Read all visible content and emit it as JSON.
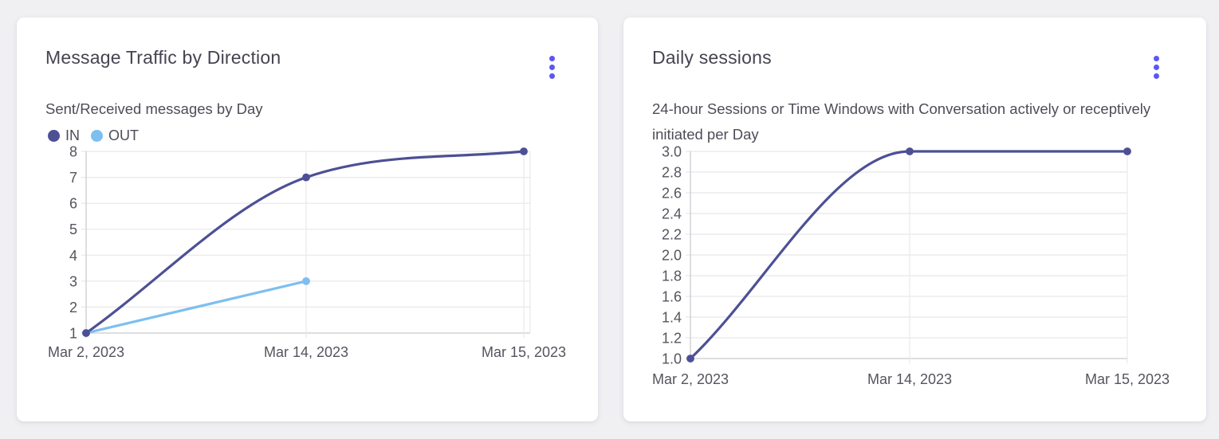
{
  "page_background": "#F0F0F3",
  "colors": {
    "accent_menu": "#5B57F2",
    "card_background": "#FFFFFF",
    "title_text": "#454451",
    "subtitle_text": "#4E4D58",
    "tick_text": "#55545E",
    "gridline": "#E8E8EB",
    "axis_line": "#C9C9CF",
    "series_in": "#4D5095",
    "series_out": "#7DBFF0"
  },
  "cards": [
    {
      "title": "Message Traffic by Direction",
      "subtitle": "Sent/Received messages by Day",
      "menu_icon": "kebab-menu-icon"
    },
    {
      "title": "Daily sessions",
      "subtitle": "24-hour Sessions or Time Windows with Conversation actively or receptively initiated per Day",
      "menu_icon": "kebab-menu-icon"
    }
  ],
  "chart_data": [
    {
      "type": "line",
      "title": "Message Traffic by Direction",
      "subtitle": "Sent/Received messages by Day",
      "categories": [
        "Mar 2, 2023",
        "Mar 14, 2023",
        "Mar 15, 2023"
      ],
      "series": [
        {
          "name": "IN",
          "color": "#4D5095",
          "values": [
            1,
            7,
            8
          ]
        },
        {
          "name": "OUT",
          "color": "#7DBFF0",
          "values": [
            1,
            3,
            null
          ]
        }
      ],
      "yticks": [
        "1",
        "2",
        "3",
        "4",
        "5",
        "6",
        "7",
        "8"
      ],
      "ylim": [
        1,
        8
      ],
      "xlabel": "",
      "ylabel": "",
      "grid": true,
      "legend_position": "top-left",
      "curve": "monotone"
    },
    {
      "type": "line",
      "title": "Daily sessions",
      "subtitle": "24-hour Sessions or Time Windows with Conversation actively or receptively initiated per Day",
      "categories": [
        "Mar 2, 2023",
        "Mar 14, 2023",
        "Mar 15, 2023"
      ],
      "series": [
        {
          "name": "Daily sessions",
          "color": "#4D5095",
          "values": [
            1.0,
            3.0,
            3.0
          ]
        }
      ],
      "yticks": [
        "1.0",
        "1.2",
        "1.4",
        "1.6",
        "1.8",
        "2.0",
        "2.2",
        "2.4",
        "2.6",
        "2.8",
        "3.0"
      ],
      "ylim": [
        1.0,
        3.0
      ],
      "xlabel": "",
      "ylabel": "",
      "grid": true,
      "legend_position": "none",
      "curve": "monotone"
    }
  ]
}
